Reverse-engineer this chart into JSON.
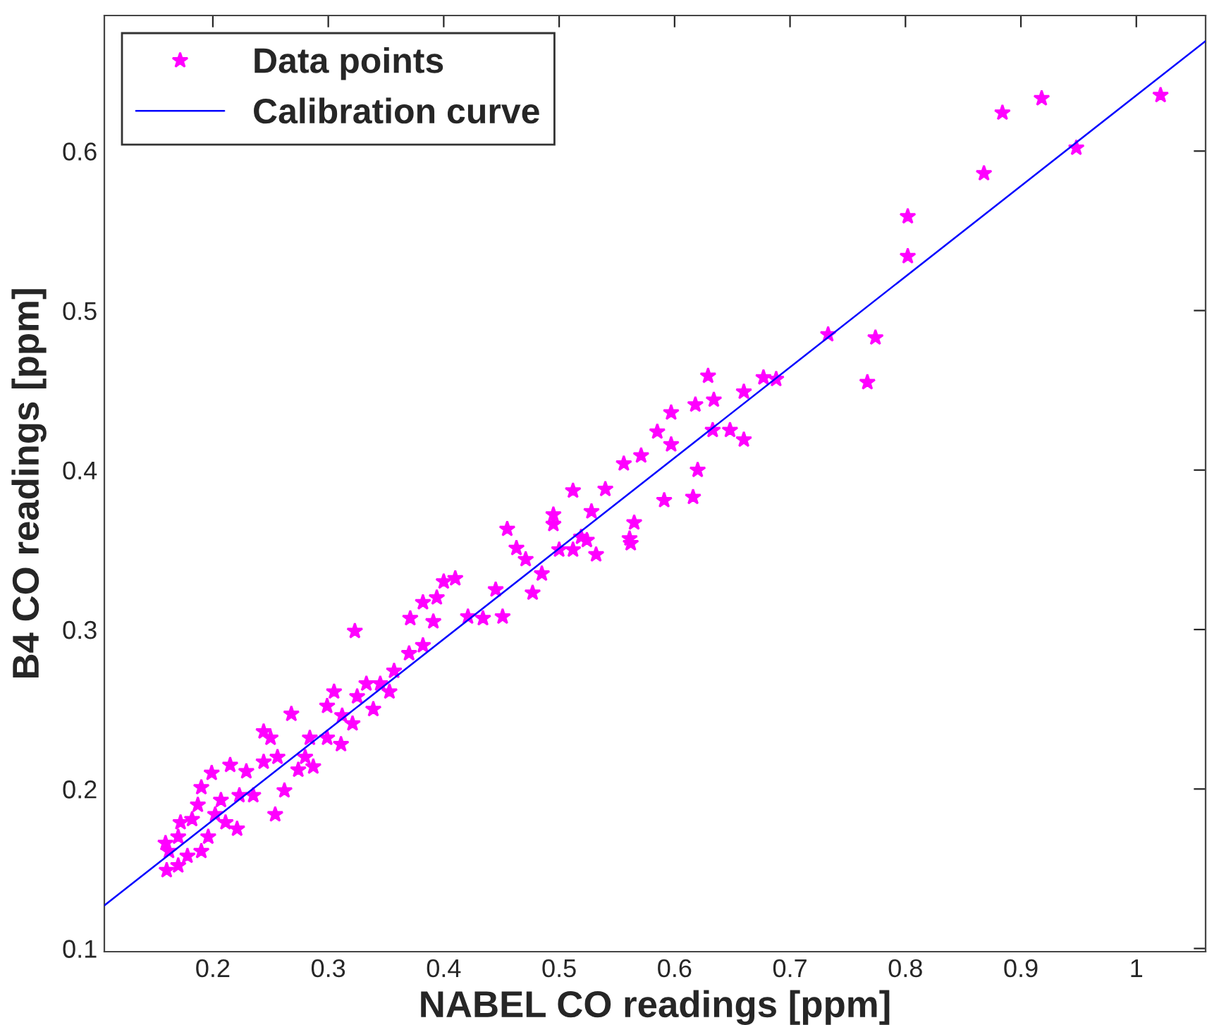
{
  "chart_data": {
    "type": "scatter",
    "xlabel": "NABEL CO readings [ppm]",
    "ylabel": "B4 CO readings [ppm]",
    "xlim": [
      0.106,
      1.06
    ],
    "ylim": [
      0.098,
      0.685
    ],
    "xticks": [
      0.2,
      0.3,
      0.4,
      0.5,
      0.6,
      0.7,
      0.8,
      0.9,
      1
    ],
    "yticks": [
      0.1,
      0.2,
      0.3,
      0.4,
      0.5,
      0.6
    ],
    "grid": false,
    "legend": "top left",
    "series": [
      {
        "name": "Data points",
        "marker": "star",
        "color": "#ff00ff",
        "x": [
          1.021,
          0.918,
          0.884,
          0.948,
          0.868,
          0.802,
          0.802,
          0.733,
          0.774,
          0.767,
          0.629,
          0.677,
          0.688,
          0.66,
          0.618,
          0.634,
          0.597,
          0.585,
          0.648,
          0.66,
          0.633,
          0.62,
          0.597,
          0.565,
          0.562,
          0.616,
          0.591,
          0.54,
          0.512,
          0.524,
          0.571,
          0.556,
          0.323,
          0.41,
          0.4,
          0.382,
          0.394,
          0.371,
          0.391,
          0.455,
          0.463,
          0.471,
          0.445,
          0.477,
          0.451,
          0.434,
          0.421,
          0.5,
          0.495,
          0.528,
          0.561,
          0.532,
          0.519,
          0.512,
          0.485,
          0.495,
          0.382,
          0.37,
          0.357,
          0.345,
          0.333,
          0.325,
          0.353,
          0.339,
          0.321,
          0.311,
          0.299,
          0.299,
          0.284,
          0.287,
          0.274,
          0.268,
          0.256,
          0.25,
          0.244,
          0.244,
          0.262,
          0.254,
          0.229,
          0.215,
          0.199,
          0.19,
          0.223,
          0.221,
          0.207,
          0.187,
          0.172,
          0.162,
          0.16,
          0.17,
          0.178,
          0.19,
          0.196,
          0.211,
          0.235,
          0.159,
          0.17,
          0.182,
          0.202,
          0.305,
          0.312,
          0.28
        ],
        "values": [
          0.635,
          0.633,
          0.624,
          0.602,
          0.586,
          0.559,
          0.534,
          0.485,
          0.483,
          0.455,
          0.459,
          0.458,
          0.457,
          0.449,
          0.441,
          0.444,
          0.436,
          0.424,
          0.425,
          0.419,
          0.425,
          0.4,
          0.416,
          0.367,
          0.354,
          0.383,
          0.381,
          0.388,
          0.387,
          0.356,
          0.409,
          0.404,
          0.299,
          0.332,
          0.33,
          0.317,
          0.32,
          0.307,
          0.305,
          0.363,
          0.351,
          0.344,
          0.325,
          0.323,
          0.308,
          0.307,
          0.308,
          0.35,
          0.372,
          0.374,
          0.357,
          0.347,
          0.358,
          0.35,
          0.335,
          0.366,
          0.29,
          0.285,
          0.274,
          0.266,
          0.266,
          0.258,
          0.261,
          0.25,
          0.241,
          0.228,
          0.252,
          0.232,
          0.232,
          0.214,
          0.212,
          0.247,
          0.22,
          0.232,
          0.236,
          0.217,
          0.199,
          0.184,
          0.211,
          0.215,
          0.21,
          0.201,
          0.196,
          0.175,
          0.193,
          0.19,
          0.179,
          0.161,
          0.149,
          0.152,
          0.158,
          0.161,
          0.17,
          0.179,
          0.196,
          0.166,
          0.17,
          0.181,
          0.184,
          0.261,
          0.246,
          0.22
        ]
      },
      {
        "name": "Calibration curve",
        "type": "line",
        "marker": "none",
        "line_style": "solid",
        "color": "#0000ff",
        "x": [
          0.106,
          1.06
        ],
        "values": [
          0.127,
          0.669
        ]
      }
    ]
  }
}
